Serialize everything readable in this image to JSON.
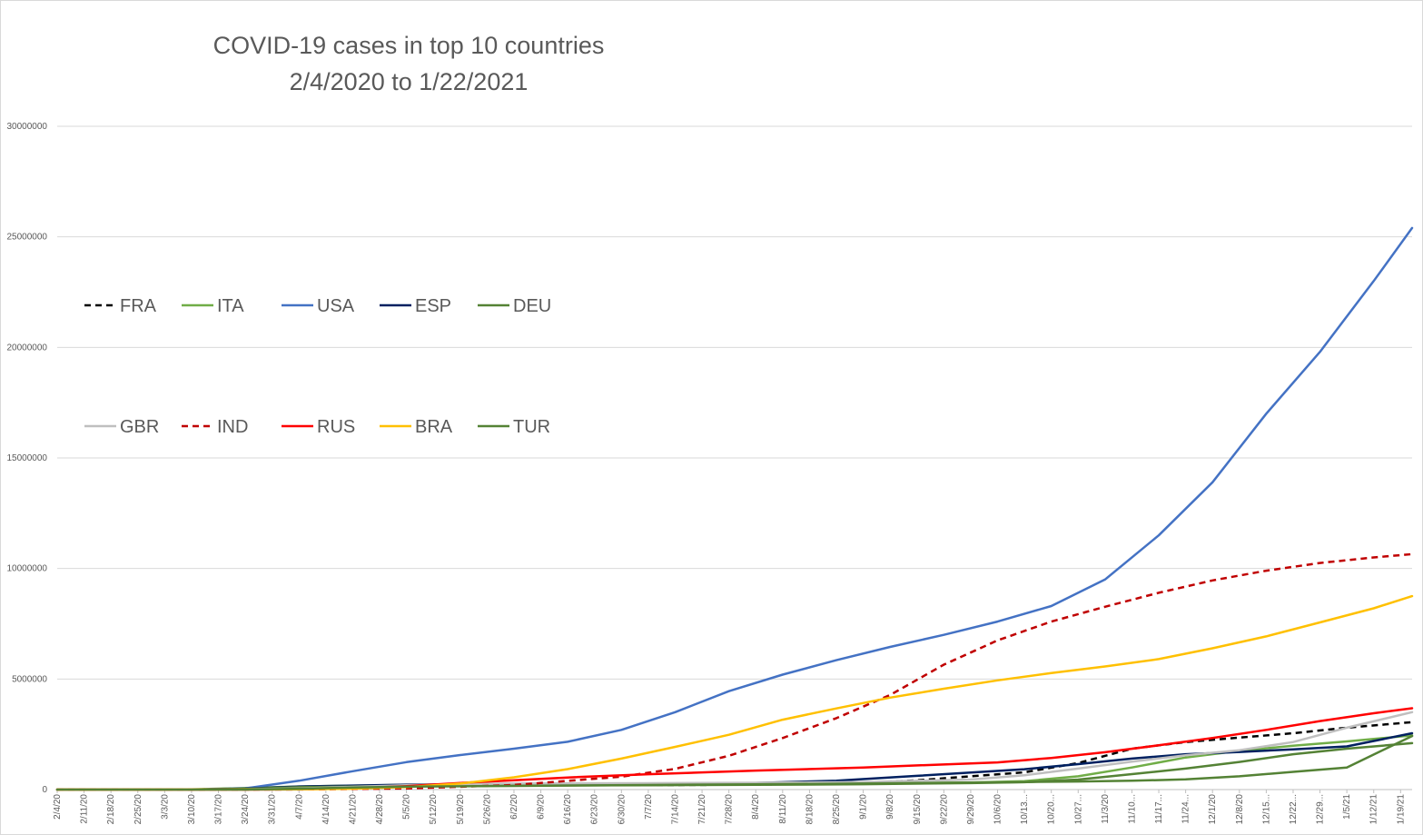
{
  "chart_data": {
    "type": "line",
    "title": "COVID-19 cases in top 10 countries",
    "subtitle": "2/4/2020 to 1/22/2021",
    "xlabel": "",
    "ylabel": "",
    "x_range": [
      "2/4/20",
      "1/22/21"
    ],
    "ylim": [
      0,
      30000000
    ],
    "yticks": [
      0,
      5000000,
      10000000,
      15000000,
      20000000,
      25000000,
      30000000
    ],
    "ytick_labels": [
      "0",
      "5000000",
      "10000000",
      "15000000",
      "20000000",
      "25000000",
      "30000000"
    ],
    "xtick_labels": [
      "2/4/20",
      "2/11/20",
      "2/18/20",
      "2/25/20",
      "3/3/20",
      "3/10/20",
      "3/17/20",
      "3/24/20",
      "3/31/20",
      "4/7/20",
      "4/14/20",
      "4/21/20",
      "4/28/20",
      "5/5/20",
      "5/12/20",
      "5/19/20",
      "5/26/20",
      "6/2/20",
      "6/9/20",
      "6/16/20",
      "6/23/20",
      "6/30/20",
      "7/7/20",
      "7/14/20",
      "7/21/20",
      "7/28/20",
      "8/4/20",
      "8/11/20",
      "8/18/20",
      "8/25/20",
      "9/1/20",
      "9/8/20",
      "9/15/20",
      "9/22/20",
      "9/29/20",
      "10/6/20",
      "10/13...",
      "10/20...",
      "10/27...",
      "11/3/20",
      "11/10...",
      "11/17...",
      "11/24...",
      "12/1/20",
      "12/8/20",
      "12/15...",
      "12/22...",
      "12/29...",
      "1/5/21",
      "1/12/21",
      "1/19/21"
    ],
    "grid": true,
    "legend_position": "left, two rows",
    "series": [
      {
        "name": "FRA",
        "color": "#000000",
        "dash": "dashed",
        "x": [
          "2/4/20",
          "3/10/20",
          "4/7/20",
          "5/5/20",
          "6/2/20",
          "7/7/20",
          "8/4/20",
          "9/1/20",
          "9/15/20",
          "9/29/20",
          "10/13/20",
          "10/27/20",
          "11/10/20",
          "11/24/20",
          "12/8/20",
          "12/22/20",
          "1/5/21",
          "1/22/21"
        ],
        "values": [
          0,
          1800,
          110000,
          170000,
          190000,
          200000,
          220000,
          300000,
          420000,
          600000,
          780000,
          1200000,
          1850000,
          2150000,
          2350000,
          2550000,
          2800000,
          3050000
        ]
      },
      {
        "name": "ITA",
        "color": "#70ad47",
        "dash": "solid",
        "x": [
          "2/4/20",
          "3/10/20",
          "3/24/20",
          "4/7/20",
          "5/5/20",
          "6/2/20",
          "7/7/20",
          "8/4/20",
          "9/1/20",
          "9/29/20",
          "10/13/20",
          "10/27/20",
          "11/10/20",
          "11/24/20",
          "12/8/20",
          "12/22/20",
          "1/5/21",
          "1/22/21"
        ],
        "values": [
          0,
          10000,
          70000,
          140000,
          215000,
          233000,
          242000,
          249000,
          270000,
          315000,
          380000,
          600000,
          1000000,
          1450000,
          1750000,
          1980000,
          2180000,
          2450000
        ]
      },
      {
        "name": "USA",
        "color": "#4472c4",
        "dash": "solid",
        "x": [
          "2/4/20",
          "3/10/20",
          "3/24/20",
          "4/7/20",
          "4/21/20",
          "5/5/20",
          "5/19/20",
          "6/2/20",
          "6/16/20",
          "6/30/20",
          "7/14/20",
          "7/28/20",
          "8/11/20",
          "8/25/20",
          "9/8/20",
          "9/22/20",
          "10/6/20",
          "10/20/20",
          "11/3/20",
          "11/17/20",
          "12/1/20",
          "12/15/20",
          "12/29/20",
          "1/12/21",
          "1/22/21"
        ],
        "values": [
          0,
          1000,
          55000,
          400000,
          830000,
          1240000,
          1560000,
          1850000,
          2160000,
          2700000,
          3500000,
          4450000,
          5200000,
          5850000,
          6450000,
          7000000,
          7600000,
          8300000,
          9500000,
          11500000,
          13900000,
          17000000,
          19800000,
          23000000,
          25400000
        ]
      },
      {
        "name": "ESP",
        "color": "#002060",
        "dash": "solid",
        "x": [
          "2/4/20",
          "3/10/20",
          "3/24/20",
          "4/7/20",
          "5/5/20",
          "6/2/20",
          "7/7/20",
          "8/4/20",
          "8/25/20",
          "9/15/20",
          "10/13/20",
          "10/27/20",
          "11/10/20",
          "11/24/20",
          "12/8/20",
          "12/22/20",
          "1/5/21",
          "1/22/21"
        ],
        "values": [
          0,
          1700,
          40000,
          140000,
          220000,
          240000,
          252000,
          300000,
          400000,
          620000,
          920000,
          1150000,
          1400000,
          1600000,
          1700000,
          1820000,
          1950000,
          2550000
        ]
      },
      {
        "name": "DEU",
        "color": "#548235",
        "dash": "solid",
        "x": [
          "2/4/20",
          "3/10/20",
          "3/24/20",
          "4/7/20",
          "5/5/20",
          "6/2/20",
          "7/7/20",
          "8/4/20",
          "9/1/20",
          "9/29/20",
          "10/13/20",
          "10/27/20",
          "11/10/20",
          "11/24/20",
          "12/8/20",
          "12/22/20",
          "1/5/21",
          "1/22/21"
        ],
        "values": [
          0,
          1500,
          32000,
          105000,
          167000,
          184000,
          197000,
          212000,
          244000,
          290000,
          334000,
          450000,
          700000,
          950000,
          1250000,
          1600000,
          1850000,
          2100000
        ]
      },
      {
        "name": "GBR",
        "color": "#bfbfbf",
        "dash": "solid",
        "x": [
          "2/4/20",
          "3/10/20",
          "3/24/20",
          "4/7/20",
          "5/5/20",
          "6/2/20",
          "7/7/20",
          "8/4/20",
          "9/1/20",
          "9/29/20",
          "10/13/20",
          "10/27/20",
          "11/10/20",
          "11/24/20",
          "12/8/20",
          "12/22/20",
          "1/5/21",
          "1/22/21"
        ],
        "values": [
          0,
          400,
          8000,
          55000,
          195000,
          280000,
          286000,
          307000,
          340000,
          450000,
          650000,
          950000,
          1260000,
          1550000,
          1780000,
          2150000,
          2800000,
          3500000
        ]
      },
      {
        "name": "IND",
        "color": "#c00000",
        "dash": "dashed",
        "x": [
          "2/4/20",
          "3/10/20",
          "4/7/20",
          "5/5/20",
          "6/2/20",
          "6/30/20",
          "7/14/20",
          "7/28/20",
          "8/11/20",
          "8/25/20",
          "9/8/20",
          "9/22/20",
          "10/6/20",
          "10/20/20",
          "11/3/20",
          "11/17/20",
          "12/1/20",
          "12/15/20",
          "12/29/20",
          "1/12/21",
          "1/22/21"
        ],
        "values": [
          0,
          50,
          5000,
          49000,
          207000,
          585000,
          936000,
          1530000,
          2330000,
          3230000,
          4280000,
          5650000,
          6750000,
          7600000,
          8270000,
          8900000,
          9460000,
          9900000,
          10250000,
          10500000,
          10650000
        ]
      },
      {
        "name": "RUS",
        "color": "#ff0000",
        "dash": "solid",
        "x": [
          "2/4/20",
          "3/24/20",
          "4/7/20",
          "4/21/20",
          "5/5/20",
          "5/19/20",
          "6/2/20",
          "6/16/20",
          "7/7/20",
          "8/4/20",
          "9/1/20",
          "10/6/20",
          "10/20/20",
          "11/3/20",
          "11/17/20",
          "12/1/20",
          "12/15/20",
          "12/29/20",
          "1/12/21",
          "1/22/21"
        ],
        "values": [
          0,
          500,
          7500,
          52000,
          155000,
          300000,
          425000,
          545000,
          695000,
          860000,
          1000000,
          1230000,
          1430000,
          1690000,
          2000000,
          2330000,
          2700000,
          3100000,
          3450000,
          3680000
        ]
      },
      {
        "name": "BRA",
        "color": "#ffc000",
        "dash": "solid",
        "x": [
          "2/4/20",
          "3/24/20",
          "4/7/20",
          "4/21/20",
          "5/5/20",
          "5/19/20",
          "6/2/20",
          "6/16/20",
          "6/30/20",
          "7/14/20",
          "7/28/20",
          "8/11/20",
          "8/25/20",
          "9/8/20",
          "9/22/20",
          "10/6/20",
          "10/20/20",
          "11/3/20",
          "11/17/20",
          "12/1/20",
          "12/15/20",
          "12/29/20",
          "1/12/21",
          "1/22/21"
        ],
        "values": [
          0,
          2200,
          14000,
          43000,
          115000,
          270000,
          555000,
          925000,
          1400000,
          1930000,
          2480000,
          3160000,
          3670000,
          4160000,
          4560000,
          4940000,
          5270000,
          5570000,
          5900000,
          6390000,
          6930000,
          7560000,
          8200000,
          8750000
        ]
      },
      {
        "name": "TUR",
        "color": "#548235",
        "dash": "solid",
        "x": [
          "2/4/20",
          "3/10/20",
          "3/24/20",
          "4/7/20",
          "4/21/20",
          "5/5/20",
          "6/2/20",
          "7/7/20",
          "8/4/20",
          "9/1/20",
          "9/29/20",
          "10/13/20",
          "10/27/20",
          "11/10/20",
          "11/24/20",
          "12/8/20",
          "12/22/20",
          "1/5/21",
          "1/22/21"
        ],
        "values": [
          0,
          0,
          1800,
          38000,
          95000,
          130000,
          165000,
          207000,
          237000,
          272000,
          318000,
          340000,
          365000,
          400000,
          460000,
          600000,
          800000,
          1000000,
          2420000
        ]
      }
    ]
  }
}
